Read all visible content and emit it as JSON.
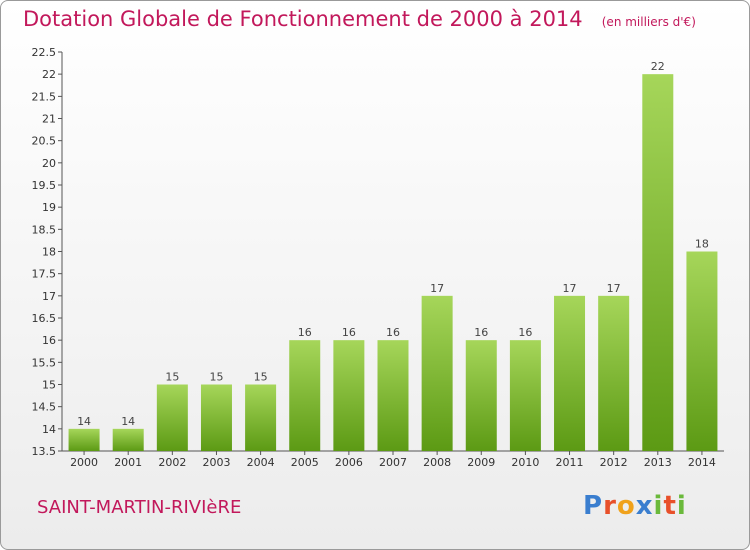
{
  "header": {
    "title": "Dotation Globale de Fonctionnement de 2000 à 2014",
    "unit": "(en milliers d'€)"
  },
  "footer": {
    "town": "SAINT-MARTIN-RIVIèRE",
    "logo": {
      "text": "Proxiti",
      "letter_colors": [
        "#3a7ecf",
        "#e8502a",
        "#f0a21c",
        "#3a7ecf",
        "#6ab93b",
        "#e8502a",
        "#6ab93b"
      ]
    }
  },
  "colors": {
    "title": "#c2185b",
    "bar_top": "#a6d65a",
    "bar_bottom": "#5c9a14"
  },
  "chart_data": {
    "type": "bar",
    "title": "Dotation Globale de Fonctionnement de 2000 à 2014",
    "subtitle": "(en milliers d'€)",
    "xlabel": "",
    "ylabel": "",
    "categories": [
      "2000",
      "2001",
      "2002",
      "2003",
      "2004",
      "2005",
      "2006",
      "2007",
      "2008",
      "2009",
      "2010",
      "2011",
      "2012",
      "2013",
      "2014"
    ],
    "values": [
      14,
      14,
      15,
      15,
      15,
      16,
      16,
      16,
      17,
      16,
      16,
      17,
      17,
      22,
      18
    ],
    "data_labels": [
      "14",
      "14",
      "15",
      "15",
      "15",
      "16",
      "16",
      "16",
      "17",
      "16",
      "16",
      "17",
      "17",
      "22",
      "18"
    ],
    "ylim": [
      13.5,
      22.5
    ],
    "yticks": [
      "13.5",
      "14",
      "14.5",
      "15",
      "15.5",
      "16",
      "16.5",
      "17",
      "17.5",
      "18",
      "18.5",
      "19",
      "19.5",
      "20",
      "20.5",
      "21",
      "21.5",
      "22",
      "22.5"
    ],
    "grid": false,
    "legend": "none"
  }
}
